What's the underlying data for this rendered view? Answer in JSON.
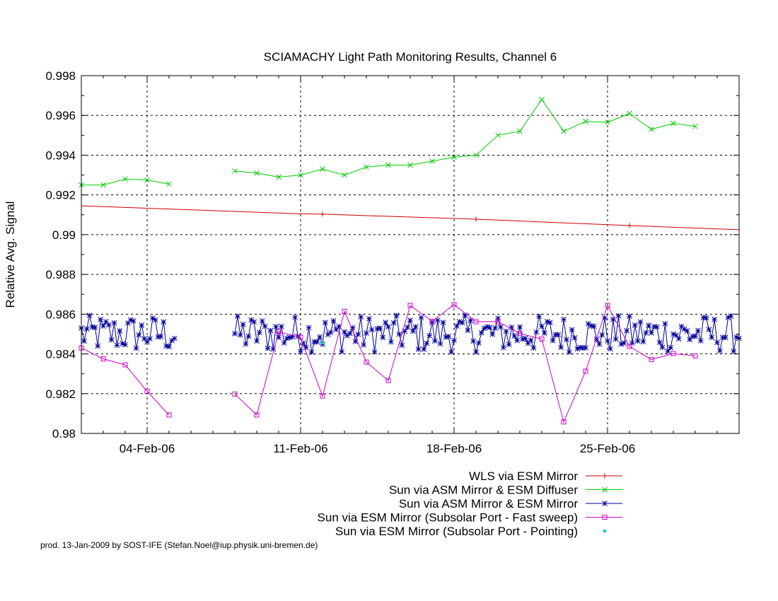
{
  "chart_data": {
    "type": "line",
    "title": "SCIAMACHY Light Path Monitoring Results, Channel 6",
    "xlabel": "",
    "ylabel": "Relative Avg. Signal",
    "footer": "prod. 13-Jan-2009 by SOST-IFE (Stefan.Noel@iup.physik.uni-bremen.de)",
    "xlim": [
      "2006-02-01",
      "2006-03-03"
    ],
    "ylim": [
      0.98,
      0.998
    ],
    "y_ticks": [
      "0.98",
      "0.982",
      "0.984",
      "0.986",
      "0.988",
      "0.99",
      "0.992",
      "0.994",
      "0.996",
      "0.998"
    ],
    "x_ticks": [
      {
        "date": "2006-02-04",
        "label": "04-Feb-06"
      },
      {
        "date": "2006-02-11",
        "label": "11-Feb-06"
      },
      {
        "date": "2006-02-18",
        "label": "18-Feb-06"
      },
      {
        "date": "2006-02-25",
        "label": "25-Feb-06"
      }
    ],
    "grid": true,
    "legend_position": "bottom-right",
    "series": [
      {
        "name": "WLS via ESM Mirror",
        "color": "#cc0000",
        "marker": "plus",
        "points": [
          [
            "2006-02-01",
            0.99145
          ],
          [
            "2006-02-11",
            0.99105
          ],
          [
            "2006-02-12",
            0.99103
          ],
          [
            "2006-02-19",
            0.99078
          ],
          [
            "2006-02-26",
            0.99046
          ],
          [
            "2006-03-03",
            0.99025
          ]
        ],
        "marker_dates": [
          "2006-02-12",
          "2006-02-19",
          "2006-02-26"
        ]
      },
      {
        "name": "Sun via ASM Mirror & ESM Diffuser",
        "color": "#00cc00",
        "marker": "cross",
        "segments": [
          [
            [
              "2006-02-01",
              0.9925
            ],
            [
              "2006-02-02",
              0.9925
            ],
            [
              "2006-02-03",
              0.9928
            ],
            [
              "2006-02-04",
              0.99275
            ],
            [
              "2006-02-05",
              0.99255
            ]
          ],
          [
            [
              "2006-02-08",
              0.9932
            ],
            [
              "2006-02-09",
              0.9931
            ],
            [
              "2006-02-10",
              0.9929
            ],
            [
              "2006-02-11",
              0.993
            ],
            [
              "2006-02-12",
              0.9933
            ],
            [
              "2006-02-13",
              0.993
            ],
            [
              "2006-02-14",
              0.9934
            ],
            [
              "2006-02-15",
              0.9935
            ],
            [
              "2006-02-16",
              0.9935
            ],
            [
              "2006-02-17",
              0.9937
            ],
            [
              "2006-02-18",
              0.9939
            ],
            [
              "2006-02-19",
              0.994
            ],
            [
              "2006-02-20",
              0.995
            ],
            [
              "2006-02-21",
              0.9952
            ],
            [
              "2006-02-22",
              0.9968
            ],
            [
              "2006-02-23",
              0.9952
            ],
            [
              "2006-02-24",
              0.9957
            ],
            [
              "2006-02-25",
              0.99565
            ],
            [
              "2006-02-26",
              0.9961
            ],
            [
              "2006-02-27",
              0.9953
            ],
            [
              "2006-02-28",
              0.9956
            ],
            [
              "2006-03-01",
              0.99545
            ]
          ]
        ]
      },
      {
        "name": "Sun via ASM Mirror & ESM Mirror",
        "color": "#000099",
        "marker": "star",
        "noise_range": [
          0.9837,
          0.9862
        ],
        "active_periods": [
          [
            "2006-02-01",
            "2006-02-05"
          ],
          [
            "2006-02-08",
            "2006-03-03"
          ]
        ]
      },
      {
        "name": "Sun via ESM Mirror (Subsolar Port - Fast sweep)",
        "color": "#cc00cc",
        "marker": "square",
        "segments": [
          [
            [
              "2006-02-01",
              0.9843
            ],
            [
              "2006-02-02",
              0.98375
            ],
            [
              "2006-02-03",
              0.98345
            ],
            [
              "2006-02-04",
              0.98212
            ],
            [
              "2006-02-05",
              0.98093
            ]
          ],
          [
            [
              "2006-02-08",
              0.98198
            ],
            [
              "2006-02-09",
              0.98093
            ],
            [
              "2006-02-10",
              0.98511
            ],
            [
              "2006-02-11",
              0.98483
            ],
            [
              "2006-02-12",
              0.98188
            ],
            [
              "2006-02-13",
              0.98614
            ],
            [
              "2006-02-14",
              0.98359
            ],
            [
              "2006-02-15",
              0.98266
            ],
            [
              "2006-02-16",
              0.98644
            ],
            [
              "2006-02-17",
              0.98564
            ],
            [
              "2006-02-18",
              0.98648
            ],
            [
              "2006-02-19",
              0.98562
            ],
            [
              "2006-02-20",
              0.98563
            ],
            [
              "2006-02-21",
              0.98503
            ],
            [
              "2006-02-22",
              0.98475
            ],
            [
              "2006-02-23",
              0.98058
            ],
            [
              "2006-02-24",
              0.98313
            ],
            [
              "2006-02-25",
              0.98644
            ],
            [
              "2006-02-26",
              0.98438
            ],
            [
              "2006-02-27",
              0.98372
            ],
            [
              "2006-02-28",
              0.98402
            ],
            [
              "2006-03-01",
              0.9839
            ]
          ]
        ]
      },
      {
        "name": "Sun via ESM Mirror (Subsolar Port - Pointing)",
        "color": "#00cccc",
        "marker": "dot",
        "points": [
          [
            "2006-02-12",
            0.98455
          ]
        ]
      }
    ]
  }
}
